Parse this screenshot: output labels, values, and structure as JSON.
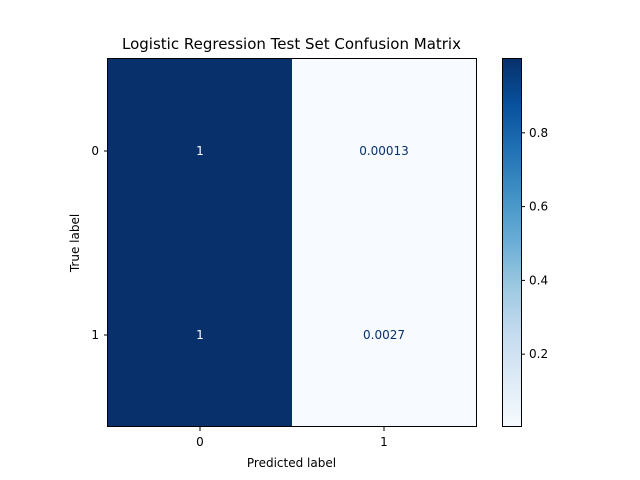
{
  "chart_data": {
    "type": "heatmap",
    "title": "Logistic Regression Test Set Confusion Matrix",
    "xlabel": "Predicted label",
    "ylabel": "True label",
    "x_categories": [
      "0",
      "1"
    ],
    "y_categories": [
      "0",
      "1"
    ],
    "values": [
      [
        1.0,
        0.00013
      ],
      [
        1.0,
        0.0027
      ]
    ],
    "value_labels": [
      [
        "1",
        "0.00013"
      ],
      [
        "1",
        "0.0027"
      ]
    ],
    "colormap": "Blues",
    "colorbar": {
      "range": [
        0.0027,
        1.0
      ],
      "ticks": [
        0.2,
        0.4,
        0.6,
        0.8
      ],
      "tick_labels": [
        "0.2",
        "0.4",
        "0.6",
        "0.8"
      ]
    },
    "colors": {
      "dark_cell": "#08306b",
      "light_cell": "#f7fbff",
      "text_on_dark": "#ffffff",
      "text_on_light": "#08306b"
    }
  }
}
